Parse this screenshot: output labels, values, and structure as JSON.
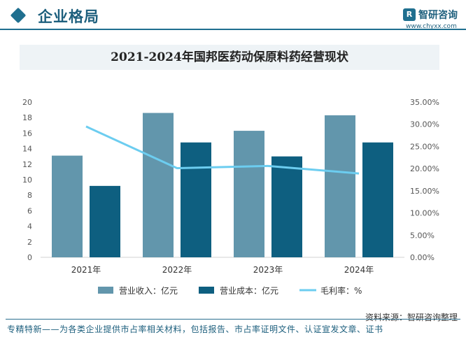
{
  "header": {
    "section_title": "企业格局",
    "brand_name": "智研咨询",
    "brand_url": "www.chyxx.com"
  },
  "chart_title": "2021-2024年国邦医药动保原料药经营现状",
  "chart_data": {
    "type": "bar",
    "title": "2021-2024年国邦医药动保原料药经营现状",
    "categories": [
      "2021年",
      "2022年",
      "2023年",
      "2024年"
    ],
    "series": [
      {
        "name": "营业收入：亿元",
        "type": "bar",
        "axis": "left",
        "color": "#6296ac",
        "values": [
          13.1,
          18.6,
          16.3,
          18.3
        ]
      },
      {
        "name": "营业成本：亿元",
        "type": "bar",
        "axis": "left",
        "color": "#0e5f80",
        "values": [
          9.2,
          14.8,
          13.0,
          14.8
        ]
      },
      {
        "name": "毛利率：%",
        "type": "line",
        "axis": "right",
        "color": "#6ccdf0",
        "values": [
          29.5,
          20.1,
          20.6,
          18.9
        ]
      }
    ],
    "y_left": {
      "min": 0,
      "max": 20,
      "ticks": [
        "0",
        "2",
        "4",
        "6",
        "8",
        "10",
        "12",
        "14",
        "16",
        "18",
        "20"
      ]
    },
    "y_right": {
      "min": 0,
      "max": 35,
      "ticks": [
        "0.00%",
        "5.00%",
        "10.00%",
        "15.00%",
        "20.00%",
        "25.00%",
        "30.00%",
        "35.00%"
      ]
    },
    "grid": false,
    "legend_position": "bottom"
  },
  "source": "资料来源：智研咨询整理",
  "footer": "专精特新——为各类企业提供市占率相关材料，包括报告、市占率证明文件、认证宣发文章、证书"
}
